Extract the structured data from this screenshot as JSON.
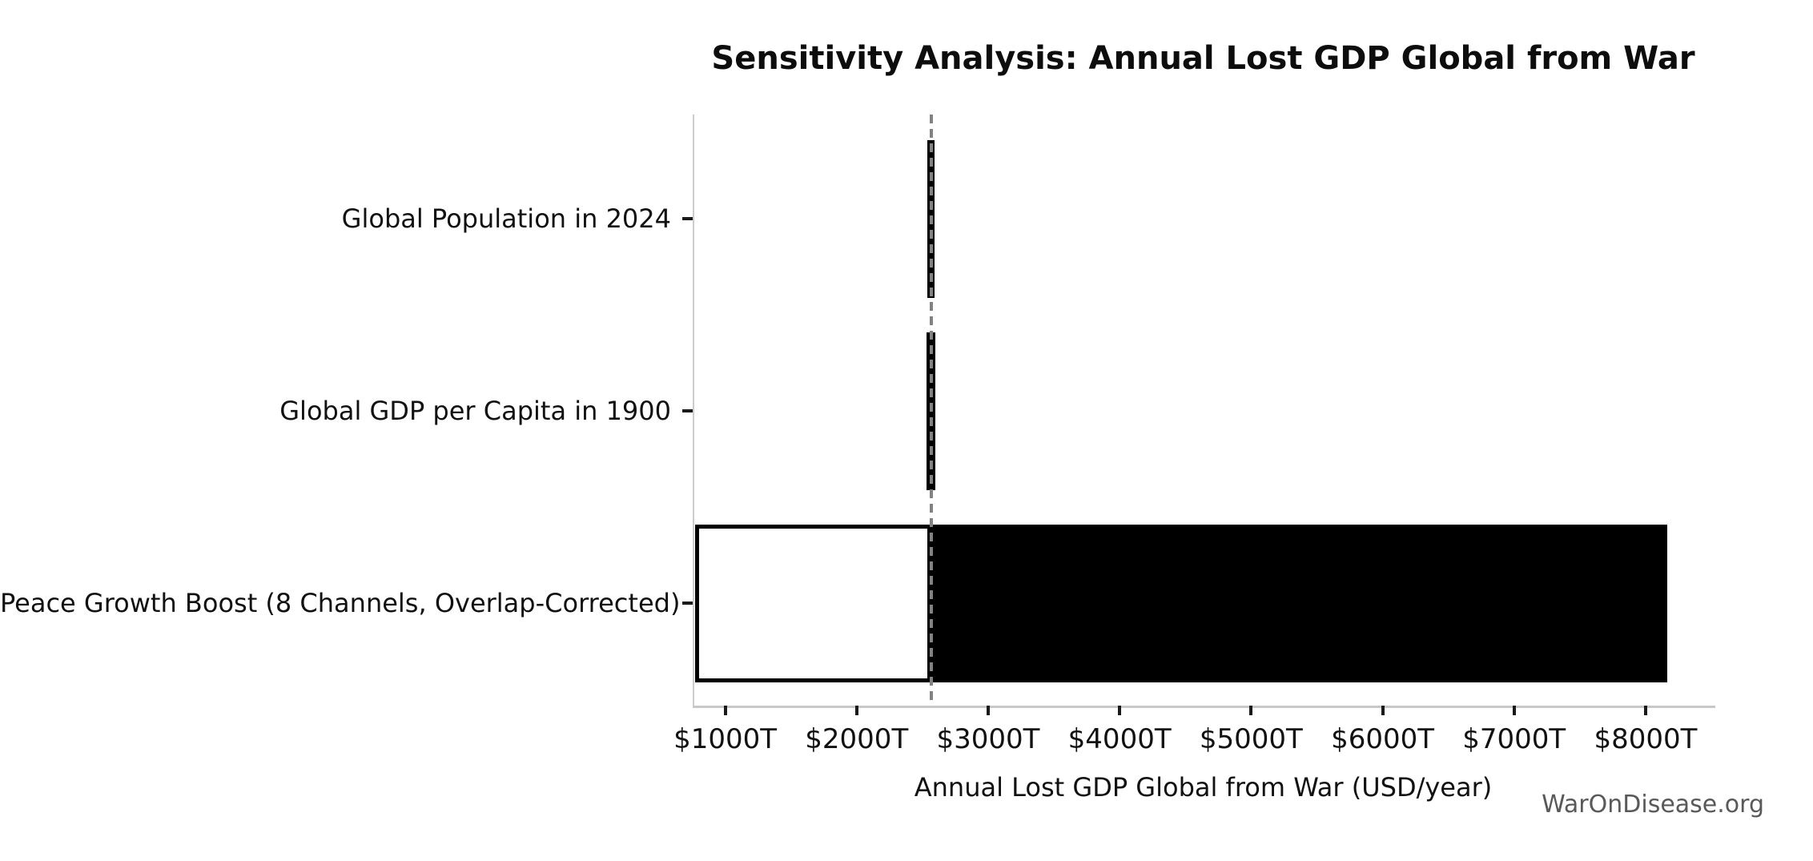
{
  "figure": {
    "watermark": "WarOnDisease.org"
  },
  "chart_data": {
    "type": "bar",
    "subtype": "tornado-sensitivity-horizontal",
    "title": "Sensitivity Analysis: Annual Lost GDP Global from War",
    "xlabel": "Annual Lost GDP Global from War (USD/year)",
    "x_unit": "trillions of USD per year (T)",
    "xlim": [
      753,
      8518
    ],
    "grid": false,
    "legend_position": "none",
    "baseline_value": 2565,
    "categories": [
      "Global Population in 2024",
      "Global GDP per Capita in 1900",
      "Peace Growth Boost (8 Channels, Overlap-Corrected)"
    ],
    "x_ticks": [
      {
        "value": 1000,
        "label": "$1000T"
      },
      {
        "value": 2000,
        "label": "$2000T"
      },
      {
        "value": 3000,
        "label": "$3000T"
      },
      {
        "value": 4000,
        "label": "$4000T"
      },
      {
        "value": 5000,
        "label": "$5000T"
      },
      {
        "value": 6000,
        "label": "$6000T"
      },
      {
        "value": 7000,
        "label": "$7000T"
      },
      {
        "value": 8000,
        "label": "$8000T"
      }
    ],
    "rows": [
      {
        "label": "Global Population in 2024",
        "low": 2540,
        "high": 2590
      },
      {
        "label": "Global GDP per Capita in 1900",
        "low": 2530,
        "high": 2600
      },
      {
        "label": "Peace Growth Boost (8 Channels, Overlap-Corrected)",
        "low": 770,
        "high": 8165
      }
    ],
    "colors": {
      "below_baseline_fill": "#ffffff",
      "above_baseline_fill": "#000000",
      "bar_edge": "#000000",
      "baseline_dash": "#828282",
      "spine": "#cccccc",
      "tick": "#1a1a1a",
      "text": "#111111",
      "watermark": "#595959"
    }
  }
}
